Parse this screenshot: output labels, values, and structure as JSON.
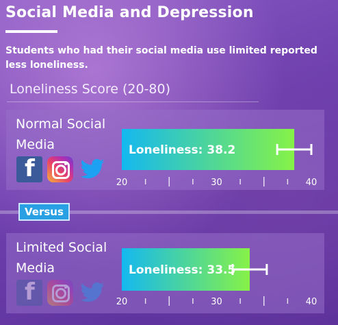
{
  "header": {
    "title": "Social Media and Depression",
    "subtitle": "Students who had their social media use limited reported less loneliness.",
    "score_title": "Loneliness Score (20-80)"
  },
  "versus_label": "Versus",
  "groups": [
    {
      "label": "Normal Social Media",
      "bar_text": "Loneliness: 38.2",
      "icons": [
        "facebook-icon",
        "instagram-icon",
        "twitter-icon"
      ]
    },
    {
      "label": "Limited Social Media",
      "bar_text": "Loneliness: 33.5",
      "icons": [
        "facebook-icon",
        "instagram-icon",
        "twitter-icon"
      ]
    }
  ],
  "chart_data": [
    {
      "type": "bar",
      "orientation": "horizontal",
      "categories": [
        "Normal Social Media"
      ],
      "values": [
        38.2
      ],
      "error": [
        1.8
      ],
      "xlim": [
        20,
        40
      ],
      "xticks": [
        "20",
        "30",
        "40"
      ],
      "grid": false
    },
    {
      "type": "bar",
      "orientation": "horizontal",
      "categories": [
        "Limited Social Media"
      ],
      "values": [
        33.5
      ],
      "error": [
        1.8
      ],
      "xlim": [
        20,
        40
      ],
      "xticks": [
        "20",
        "30",
        "40"
      ],
      "grid": false
    }
  ],
  "colors": {
    "bar_start": "#14b8f0",
    "bar_end": "#86f247",
    "versus": "#2aa0e4"
  }
}
